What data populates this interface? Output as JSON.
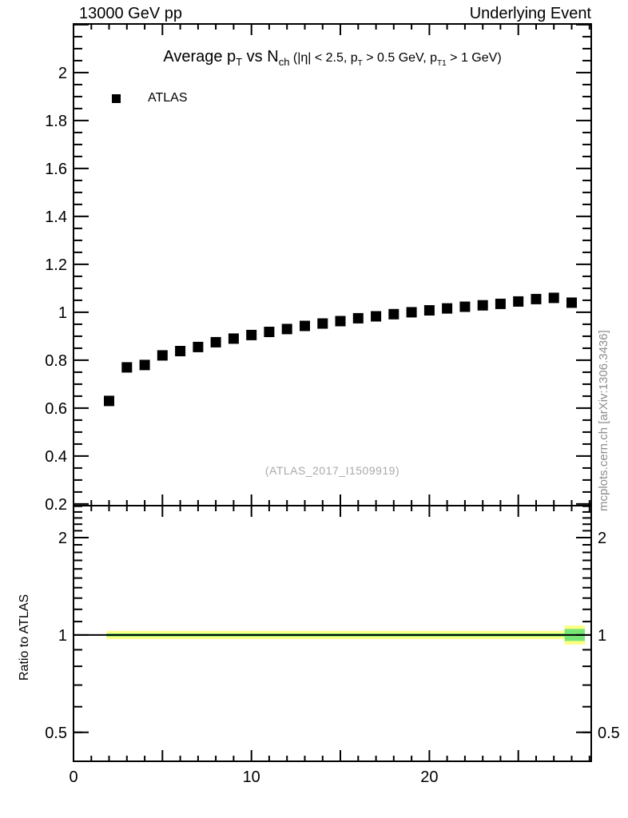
{
  "header": {
    "left_label": "13000 GeV pp",
    "right_label": "Underlying Event"
  },
  "main_panel": {
    "title_segments": [
      {
        "text": "Average p",
        "style": "base"
      },
      {
        "text": "T",
        "style": "base-sub"
      },
      {
        "text": " vs N",
        "style": "base"
      },
      {
        "text": "ch",
        "style": "base-sub"
      },
      {
        "text": " (|η| < 2.5, p",
        "style": "small"
      },
      {
        "text": "T",
        "style": "small-sub"
      },
      {
        "text": " > 0.5 GeV, p",
        "style": "small"
      },
      {
        "text": "T1",
        "style": "small-sub"
      },
      {
        "text": " > 1 GeV)",
        "style": "small"
      }
    ],
    "legend_items": [
      {
        "label": "ATLAS",
        "marker": "filled-square",
        "marker_color": "#000000"
      }
    ],
    "watermark": "(ATLAS_2017_I1509919)",
    "side_note": "mcplots.cern.ch [arXiv:1306.3436]"
  },
  "colors": {
    "marker": "#000000",
    "band_outer": "#ffff82",
    "band_inner": "#76e576",
    "frame": "#000000",
    "watermark_gray": "#a9a9a9",
    "side_note_gray": "#8e8e8e"
  },
  "chart_data": {
    "type": "scatter",
    "title": "Average pT vs Nch (|η| < 2.5, pT > 0.5 GeV, pT1 > 1 GeV)",
    "header_left": "13000 GeV pp",
    "header_right": "Underlying Event",
    "legend": [
      "ATLAS"
    ],
    "legend_position": "top-left",
    "grid": false,
    "xlim": [
      0,
      29.1
    ],
    "ylim": [
      0.193,
      2.203
    ],
    "x_major_ticks": [
      0,
      10,
      20
    ],
    "x_medium_tick_step": 5,
    "x_minor_tick_step": 1,
    "y_major_tick_step": 0.2,
    "y_minor_tick_step": 0.05,
    "y_tick_labels": [
      "0.2",
      "0.4",
      "0.6",
      "0.8",
      "1",
      "1.2",
      "1.4",
      "1.6",
      "1.8",
      "2"
    ],
    "series": [
      {
        "name": "ATLAS",
        "marker": "filled-square",
        "color": "#000000",
        "x": [
          2,
          3,
          4,
          5,
          6,
          7,
          8,
          9,
          10,
          11,
          12,
          13,
          14,
          15,
          16,
          17,
          18,
          19,
          20,
          21,
          22,
          23,
          24,
          25,
          26,
          27,
          28
        ],
        "y": [
          0.63,
          0.77,
          0.78,
          0.82,
          0.838,
          0.855,
          0.875,
          0.89,
          0.905,
          0.918,
          0.93,
          0.943,
          0.953,
          0.963,
          0.975,
          0.983,
          0.992,
          1.0,
          1.008,
          1.016,
          1.023,
          1.029,
          1.035,
          1.045,
          1.055,
          1.06,
          1.04
        ]
      }
    ],
    "ratio_panel": {
      "ylabel": "Ratio to ATLAS",
      "yscale": "log",
      "ylim": [
        0.407,
        2.51
      ],
      "y_major_ticks": [
        2,
        1,
        0.5
      ],
      "y_tick_labels": [
        "2",
        "1",
        "0.5"
      ],
      "reference_line_y": 1,
      "bands": [
        {
          "x0": 1.85,
          "x1": 27.6,
          "y0": 0.971,
          "y1": 1.029,
          "color_key": "band_outer"
        },
        {
          "x0": 27.6,
          "x1": 28.74,
          "y0": 0.934,
          "y1": 1.07,
          "color_key": "band_outer"
        },
        {
          "x0": 1.85,
          "x1": 27.6,
          "y0": 0.989,
          "y1": 1.011,
          "color_key": "band_inner"
        },
        {
          "x0": 27.6,
          "x1": 28.74,
          "y0": 0.958,
          "y1": 1.044,
          "color_key": "band_inner"
        }
      ]
    }
  }
}
